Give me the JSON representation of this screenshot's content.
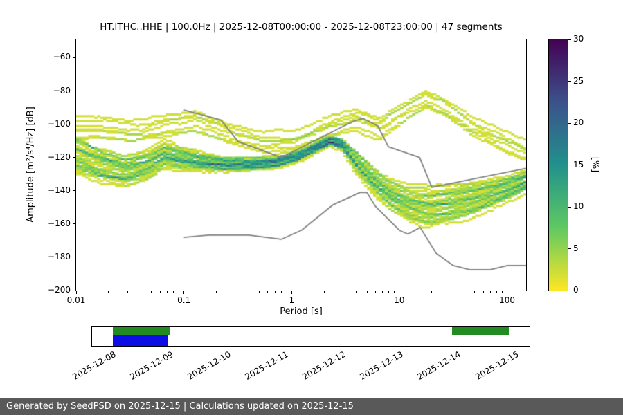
{
  "figure": {
    "background": "#ffffff",
    "footer": {
      "text": "Generated by SeedPSD on 2025-12-15 | Calculations updated on 2025-12-15",
      "bg": "#595959",
      "fg": "#ffffff"
    }
  },
  "chart_data": {
    "type": "heatmap",
    "subtype": "ppsd-probability-density",
    "title": "HT.ITHC..HHE | 100.0Hz | 2025-12-08T00:00:00 - 2025-12-08T23:00:00 | 47 segments",
    "xlabel": "Period [s]",
    "ylabel": "Amplitude [m²/s⁴/Hz] [dB]",
    "xscale": "log",
    "xlim": [
      0.01,
      150
    ],
    "ylim": [
      -200,
      -49
    ],
    "x_ticks": [
      0.01,
      0.1,
      1,
      10,
      100
    ],
    "x_tick_labels": [
      "0.01",
      "0.1",
      "1",
      "10",
      "100"
    ],
    "y_ticks": [
      -60,
      -80,
      -100,
      -120,
      -140,
      -160,
      -180,
      -200
    ],
    "y_tick_labels": [
      "−60",
      "−80",
      "−100",
      "−120",
      "−140",
      "−160",
      "−180",
      "−200"
    ],
    "segments_count": 47,
    "colorbar": {
      "label": "[%]",
      "min": 0,
      "max": 30,
      "ticks": [
        0,
        5,
        10,
        15,
        20,
        25,
        30
      ],
      "colormap_name": "viridis_r",
      "colormap": [
        "#fde725",
        "#5ec962",
        "#21918c",
        "#3b528b",
        "#440154"
      ]
    },
    "noise_models": {
      "color": "#808080",
      "nhnm": [
        [
          0.1,
          -91.5
        ],
        [
          0.22,
          -97.4
        ],
        [
          0.32,
          -110.5
        ],
        [
          0.8,
          -120
        ],
        [
          3.8,
          -98
        ],
        [
          4.6,
          -96.5
        ],
        [
          6.3,
          -101
        ],
        [
          7.9,
          -113.5
        ],
        [
          15.4,
          -120
        ],
        [
          20,
          -138
        ],
        [
          150,
          -126.5
        ]
      ],
      "nlnm": [
        [
          0.1,
          -168
        ],
        [
          0.17,
          -166.7
        ],
        [
          0.4,
          -166.7
        ],
        [
          0.8,
          -169.2
        ],
        [
          1.24,
          -163.7
        ],
        [
          2.4,
          -148.6
        ],
        [
          4.3,
          -141.1
        ],
        [
          5,
          -141.1
        ],
        [
          6,
          -149.4
        ],
        [
          10,
          -163.8
        ],
        [
          12,
          -166.1
        ],
        [
          15.6,
          -162.1
        ],
        [
          21.9,
          -177.5
        ],
        [
          31.6,
          -185
        ],
        [
          45,
          -187.5
        ],
        [
          70,
          -187.5
        ],
        [
          101,
          -185
        ],
        [
          150,
          -185
        ]
      ]
    },
    "psd_distribution": {
      "period_range_s": [
        0.02,
        148
      ],
      "modes": [
        {
          "name": "main",
          "count": 40,
          "spine": [
            [
              0.02,
              -119
            ],
            [
              0.03,
              -124
            ],
            [
              0.05,
              -128
            ],
            [
              0.08,
              -124
            ],
            [
              0.11,
              -118
            ],
            [
              0.15,
              -120
            ],
            [
              0.22,
              -122
            ],
            [
              0.35,
              -124
            ],
            [
              0.6,
              -124
            ],
            [
              1.0,
              -123
            ],
            [
              1.6,
              -119
            ],
            [
              2.2,
              -114
            ],
            [
              3.0,
              -110
            ],
            [
              3.8,
              -112
            ],
            [
              5.0,
              -122
            ],
            [
              7.0,
              -133
            ],
            [
              10,
              -142
            ],
            [
              15,
              -148
            ],
            [
              22,
              -150
            ],
            [
              35,
              -148
            ],
            [
              60,
              -144
            ],
            [
              100,
              -139
            ],
            [
              148,
              -134
            ]
          ],
          "spread": [
            [
              0.02,
              6.5
            ],
            [
              0.05,
              5
            ],
            [
              0.1,
              4.5
            ],
            [
              0.3,
              2.5
            ],
            [
              1.0,
              2
            ],
            [
              2.0,
              1.8
            ],
            [
              3.0,
              1.5
            ],
            [
              3.8,
              1.8
            ],
            [
              5.0,
              3.5
            ],
            [
              10,
              5
            ],
            [
              20,
              7
            ],
            [
              50,
              6
            ],
            [
              148,
              3.5
            ]
          ]
        },
        {
          "name": "high-outliers",
          "count": 7,
          "spine": [
            [
              0.03,
              -106
            ],
            [
              0.06,
              -108
            ],
            [
              0.1,
              -104
            ],
            [
              0.2,
              -100
            ],
            [
              0.4,
              -108
            ],
            [
              0.8,
              -114
            ],
            [
              1.5,
              -113
            ],
            [
              3.0,
              -104
            ],
            [
              5.0,
              -99
            ],
            [
              8.0,
              -104
            ],
            [
              12,
              -96
            ],
            [
              20,
              -88
            ],
            [
              30,
              -93
            ],
            [
              50,
              -104
            ],
            [
              100,
              -113
            ],
            [
              148,
              -118
            ]
          ],
          "spread": [
            [
              0.03,
              5
            ],
            [
              0.3,
              4
            ],
            [
              3.0,
              4
            ],
            [
              20,
              4
            ],
            [
              148,
              4
            ]
          ]
        }
      ]
    }
  },
  "timeline": {
    "tick_labels": [
      "2025-12-08",
      "2025-12-09",
      "2025-12-10",
      "2025-12-11",
      "2025-12-12",
      "2025-12-13",
      "2025-12-14",
      "2025-12-15"
    ],
    "axis_range_days": [
      -0.36,
      7.25
    ],
    "coverage_color": "#228b22",
    "selection_color": "#0d0dе6",
    "coverage_segments_days": [
      [
        0.0,
        1.0
      ],
      [
        5.9,
        6.9
      ]
    ],
    "selection_segments_days": [
      [
        0.0,
        0.96
      ]
    ]
  }
}
